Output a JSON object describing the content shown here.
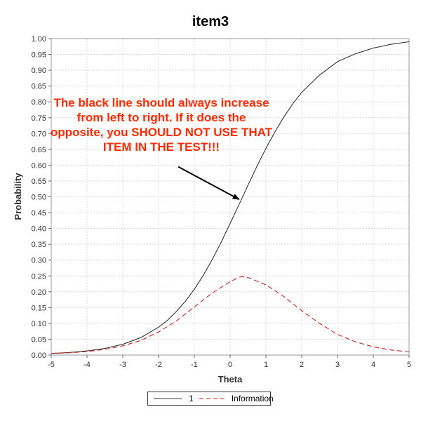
{
  "chart_data": {
    "type": "line",
    "title": "item3",
    "xlabel": "Theta",
    "ylabel": "Probability",
    "xlim": [
      -5,
      5
    ],
    "ylim": [
      0,
      1
    ],
    "x_ticks": [
      "-5",
      "-4",
      "-3",
      "-2",
      "-1",
      "0",
      "1",
      "2",
      "3",
      "4",
      "5"
    ],
    "y_ticks": [
      "0.00",
      "0.05",
      "0.10",
      "0.15",
      "0.20",
      "0.25",
      "0.30",
      "0.35",
      "0.40",
      "0.45",
      "0.50",
      "0.55",
      "0.60",
      "0.65",
      "0.70",
      "0.75",
      "0.80",
      "0.85",
      "0.90",
      "0.95",
      "1.00"
    ],
    "grid": true,
    "legend_position": "bottom-center",
    "series": [
      {
        "name": "1",
        "color": "#333333",
        "dash": "solid",
        "x": [
          -5,
          -4.5,
          -4,
          -3.5,
          -3,
          -2.5,
          -2,
          -1.75,
          -1.5,
          -1.25,
          -1,
          -0.75,
          -0.5,
          -0.25,
          0,
          0.25,
          0.5,
          0.75,
          1,
          1.25,
          1.5,
          1.75,
          2,
          2.5,
          3,
          3.5,
          4,
          4.5,
          5
        ],
        "values": [
          0.005,
          0.008,
          0.013,
          0.021,
          0.034,
          0.055,
          0.088,
          0.11,
          0.138,
          0.17,
          0.208,
          0.252,
          0.302,
          0.357,
          0.416,
          0.476,
          0.537,
          0.597,
          0.653,
          0.705,
          0.752,
          0.794,
          0.83,
          0.885,
          0.927,
          0.952,
          0.97,
          0.982,
          0.99
        ]
      },
      {
        "name": "Information",
        "color": "#cc2222",
        "dash": "dashed",
        "x": [
          -5,
          -4.5,
          -4,
          -3.5,
          -3,
          -2.5,
          -2,
          -1.5,
          -1,
          -0.5,
          0,
          0.3,
          0.5,
          1,
          1.5,
          2,
          2.5,
          3,
          3.5,
          4,
          4.5,
          5
        ],
        "values": [
          0.005,
          0.007,
          0.011,
          0.018,
          0.029,
          0.046,
          0.073,
          0.108,
          0.152,
          0.196,
          0.232,
          0.248,
          0.245,
          0.222,
          0.185,
          0.14,
          0.1,
          0.065,
          0.042,
          0.026,
          0.016,
          0.01
        ]
      }
    ],
    "annotation": {
      "text": "The black line should always increase from left to right.  If it does the opposite, you SHOULD NOT USE THAT ITEM IN THE TEST!!!",
      "color": "#ff2a00",
      "arrow_from": [
        -1.45,
        0.595
      ],
      "arrow_to": [
        0.25,
        0.492
      ]
    }
  }
}
